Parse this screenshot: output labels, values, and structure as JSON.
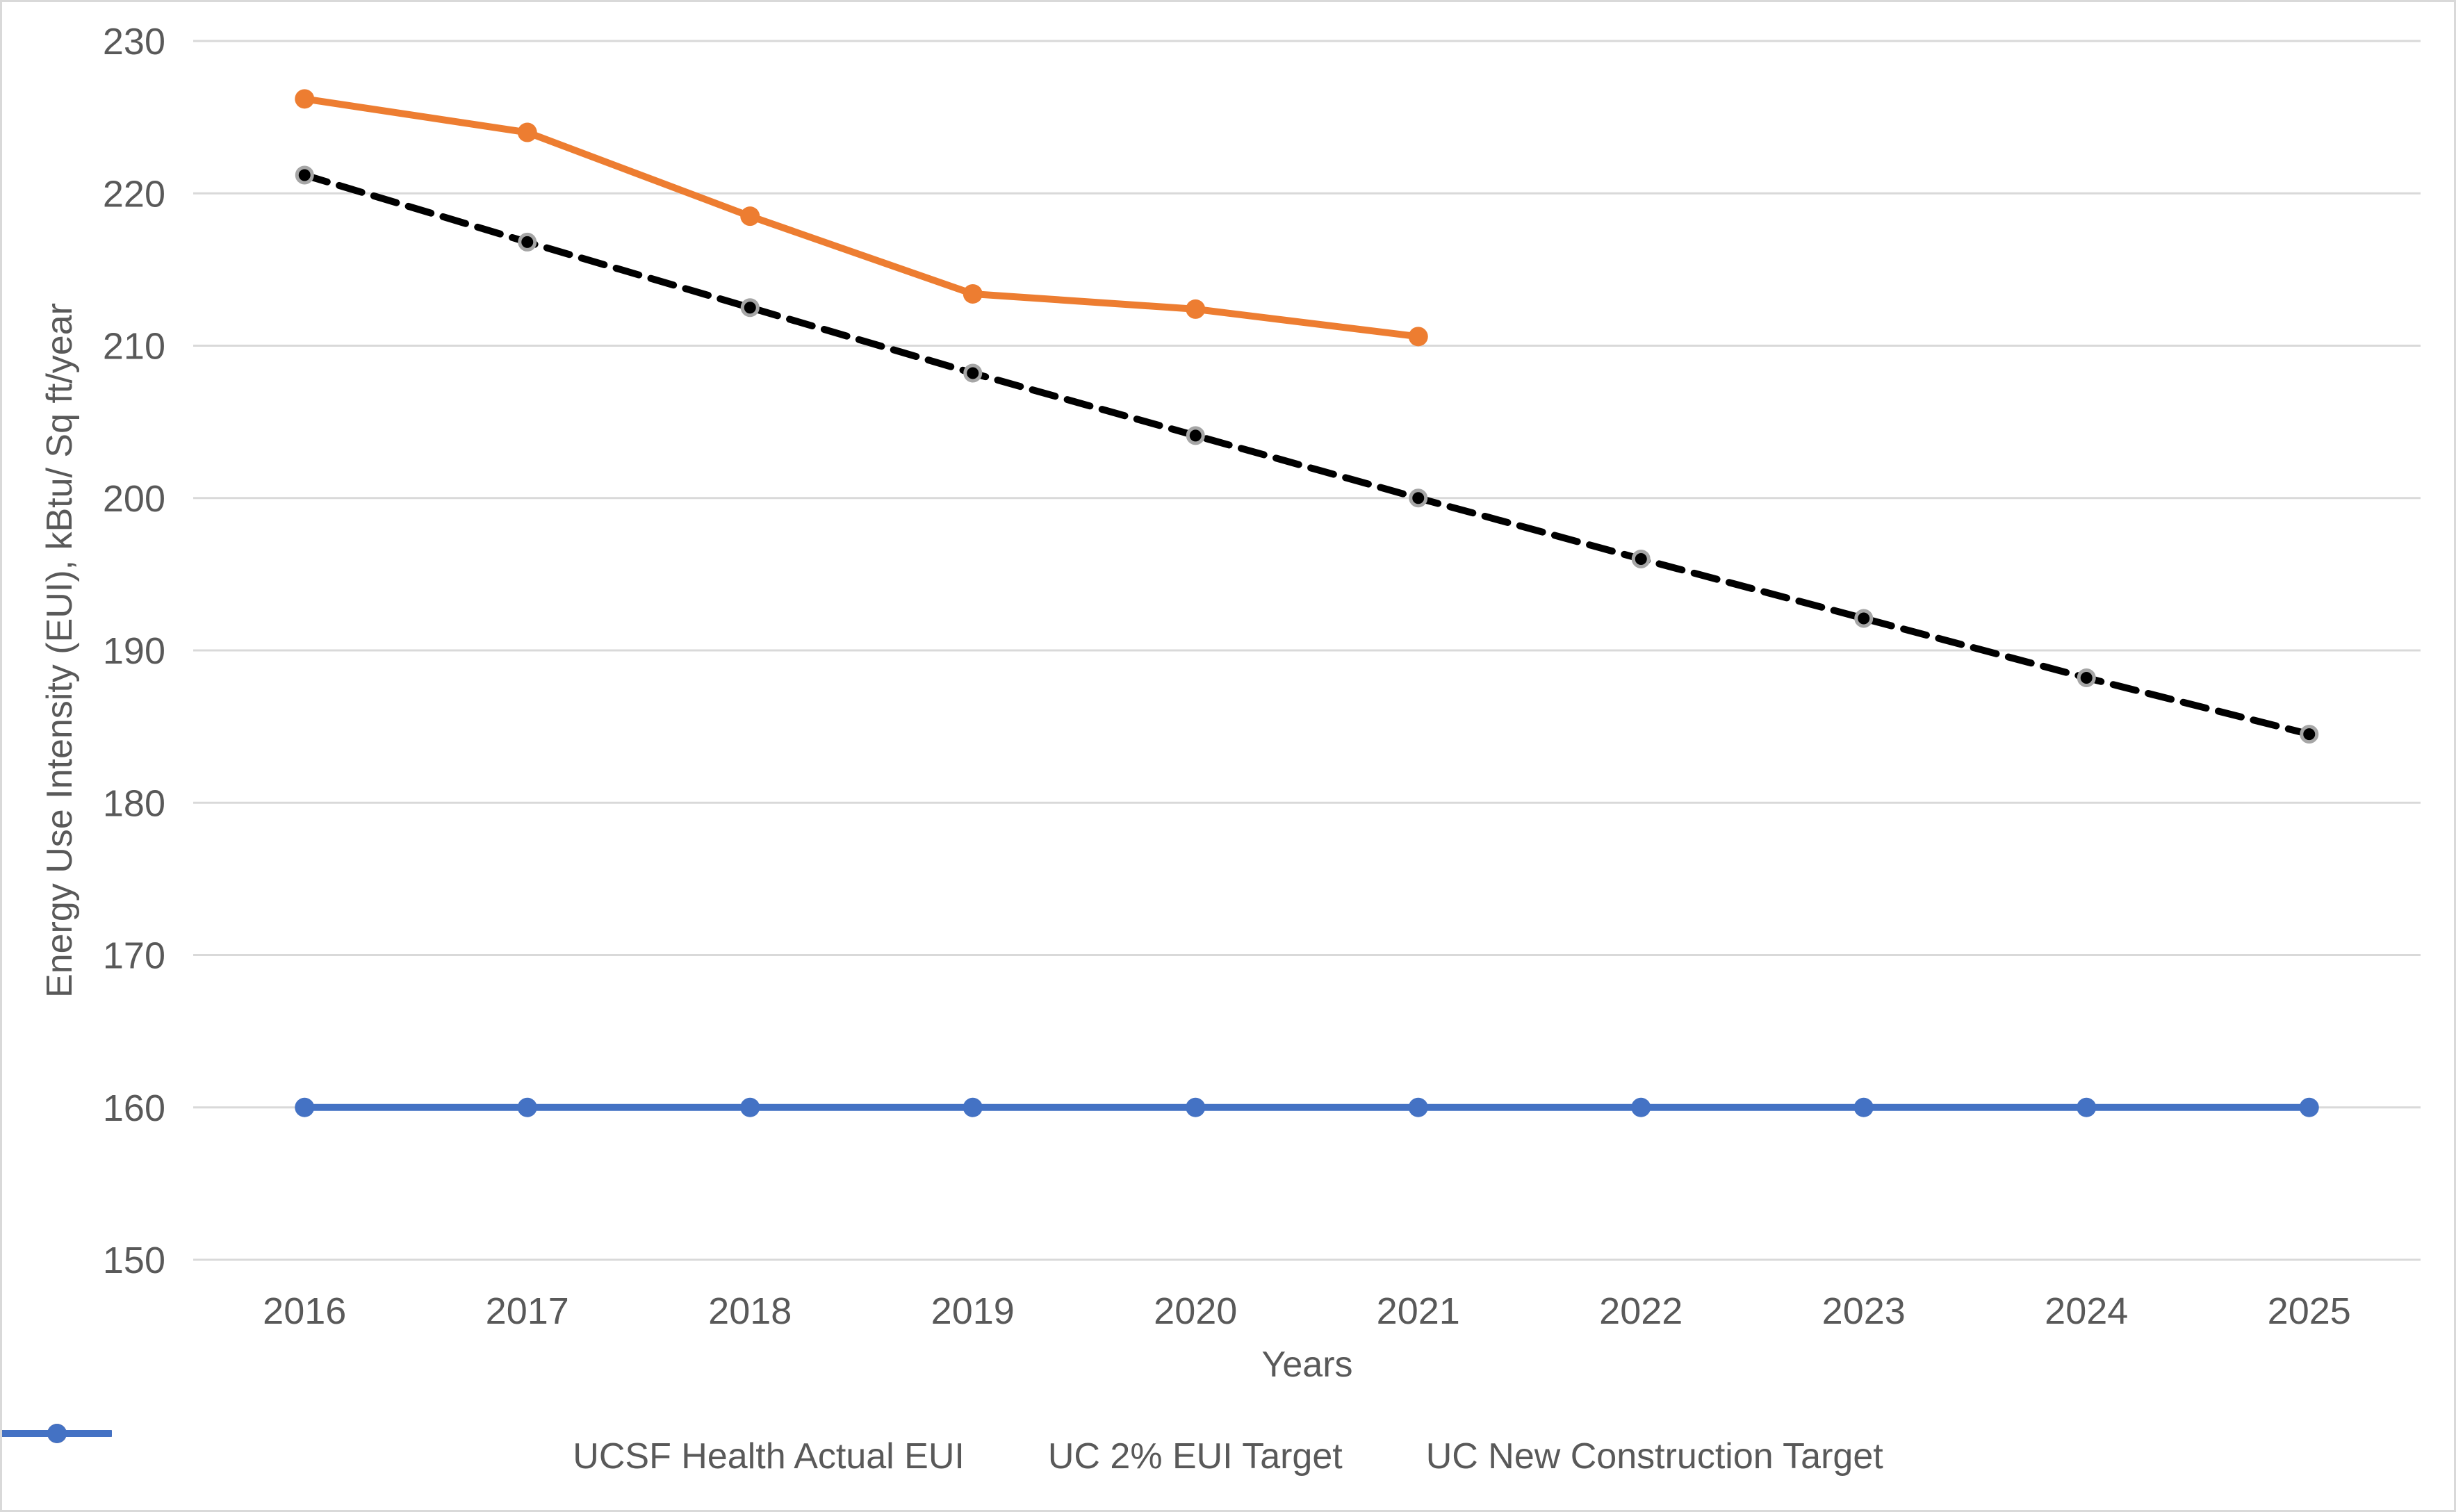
{
  "chart_data": {
    "type": "line",
    "xlabel": "Years",
    "ylabel": "Energy Use Intensity (EUI), kBtu/ Sq ft/year",
    "categories": [
      "2016",
      "2017",
      "2018",
      "2019",
      "2020",
      "2021",
      "2022",
      "2023",
      "2024",
      "2025"
    ],
    "y_ticks": [
      230,
      220,
      210,
      200,
      190,
      180,
      170,
      160,
      150
    ],
    "ylim": [
      150,
      230
    ],
    "grid": true,
    "legend_position": "bottom",
    "series": [
      {
        "name": "UCSF Health Actual EUI",
        "color": "#ED7D31",
        "line_style": "solid",
        "marker": "circle",
        "values": [
          226.2,
          224.0,
          218.5,
          213.4,
          212.4,
          210.6,
          null,
          null,
          null,
          null
        ]
      },
      {
        "name": "UC 2% EUI Target",
        "color": "#000000",
        "line_style": "dashed",
        "marker": "circle",
        "marker_outline": "#A6A6A6",
        "values": [
          221.2,
          216.8,
          212.5,
          208.2,
          204.1,
          200.0,
          196.0,
          192.1,
          188.2,
          184.5
        ]
      },
      {
        "name": "UC New Construction Target",
        "color": "#4472C4",
        "line_style": "solid",
        "marker": "circle",
        "values": [
          160,
          160,
          160,
          160,
          160,
          160,
          160,
          160,
          160,
          160
        ]
      }
    ]
  },
  "colors": {
    "background": "#FFFFFF",
    "axis_text": "#595959",
    "gridline": "#D9D9D9",
    "chart_border": "#D9D9D9"
  }
}
